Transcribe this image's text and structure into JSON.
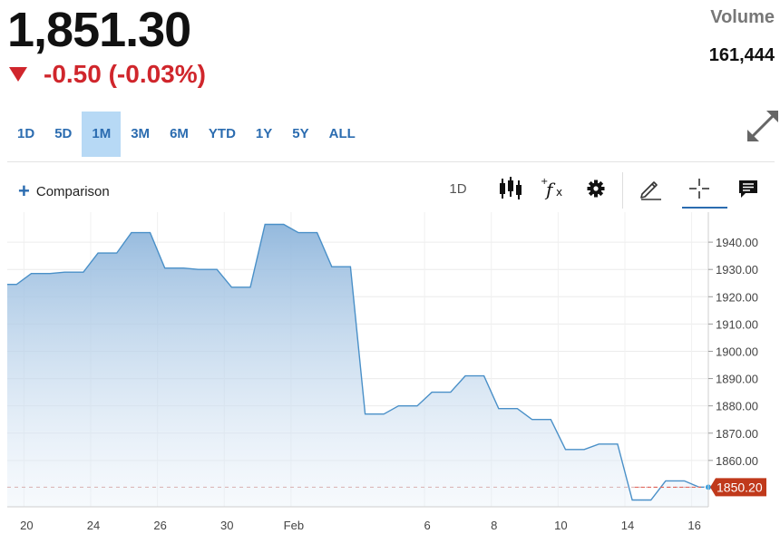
{
  "quote": {
    "price": "1,851.30",
    "change": "-0.50 (-0.03%)",
    "volume_label": "Volume",
    "volume_value": "161,444"
  },
  "ranges": [
    "1D",
    "5D",
    "1M",
    "3M",
    "6M",
    "YTD",
    "1Y",
    "5Y",
    "ALL"
  ],
  "active_range": "1M",
  "toolbar": {
    "comparison_label": "Comparison",
    "interval_label": "1D"
  },
  "colors": {
    "accent": "#2b6cb0",
    "down": "#d0262c",
    "line": "#4a90c8",
    "last_price_badge": "#c0391b"
  },
  "chart_data": {
    "type": "area",
    "x_ticks": [
      "20",
      "24",
      "26",
      "30",
      "Feb",
      "6",
      "8",
      "10",
      "14",
      "16"
    ],
    "x_tick_index": [
      1,
      3,
      5,
      7,
      9,
      13,
      15,
      17,
      19,
      21
    ],
    "y_ticks": [
      1860,
      1870,
      1880,
      1890,
      1900,
      1910,
      1920,
      1930,
      1940
    ],
    "ylim": [
      1843,
      1951
    ],
    "values": [
      1924.5,
      1928.5,
      1929,
      1936,
      1943.5,
      1930.5,
      1930,
      1923.5,
      1946.5,
      1943.5,
      1931,
      1877,
      1880,
      1885,
      1891,
      1879,
      1875,
      1864,
      1866,
      1845.5,
      1852.5,
      1850.2
    ],
    "last_value_label": "1850.20",
    "last_value": 1850.2,
    "grid": true
  }
}
